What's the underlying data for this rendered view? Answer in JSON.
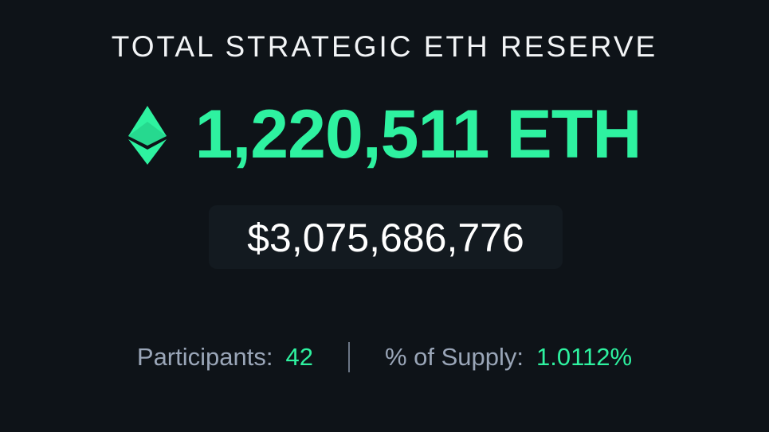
{
  "header": {
    "title": "TOTAL STRATEGIC ETH RESERVE"
  },
  "reserve": {
    "amount": "1,220,511",
    "unit": "ETH",
    "usd": "$3,075,686,776"
  },
  "stats": [
    {
      "label": "Participants:",
      "value": "42"
    },
    {
      "label": "% of Supply:",
      "value": "1.0112%"
    }
  ]
}
